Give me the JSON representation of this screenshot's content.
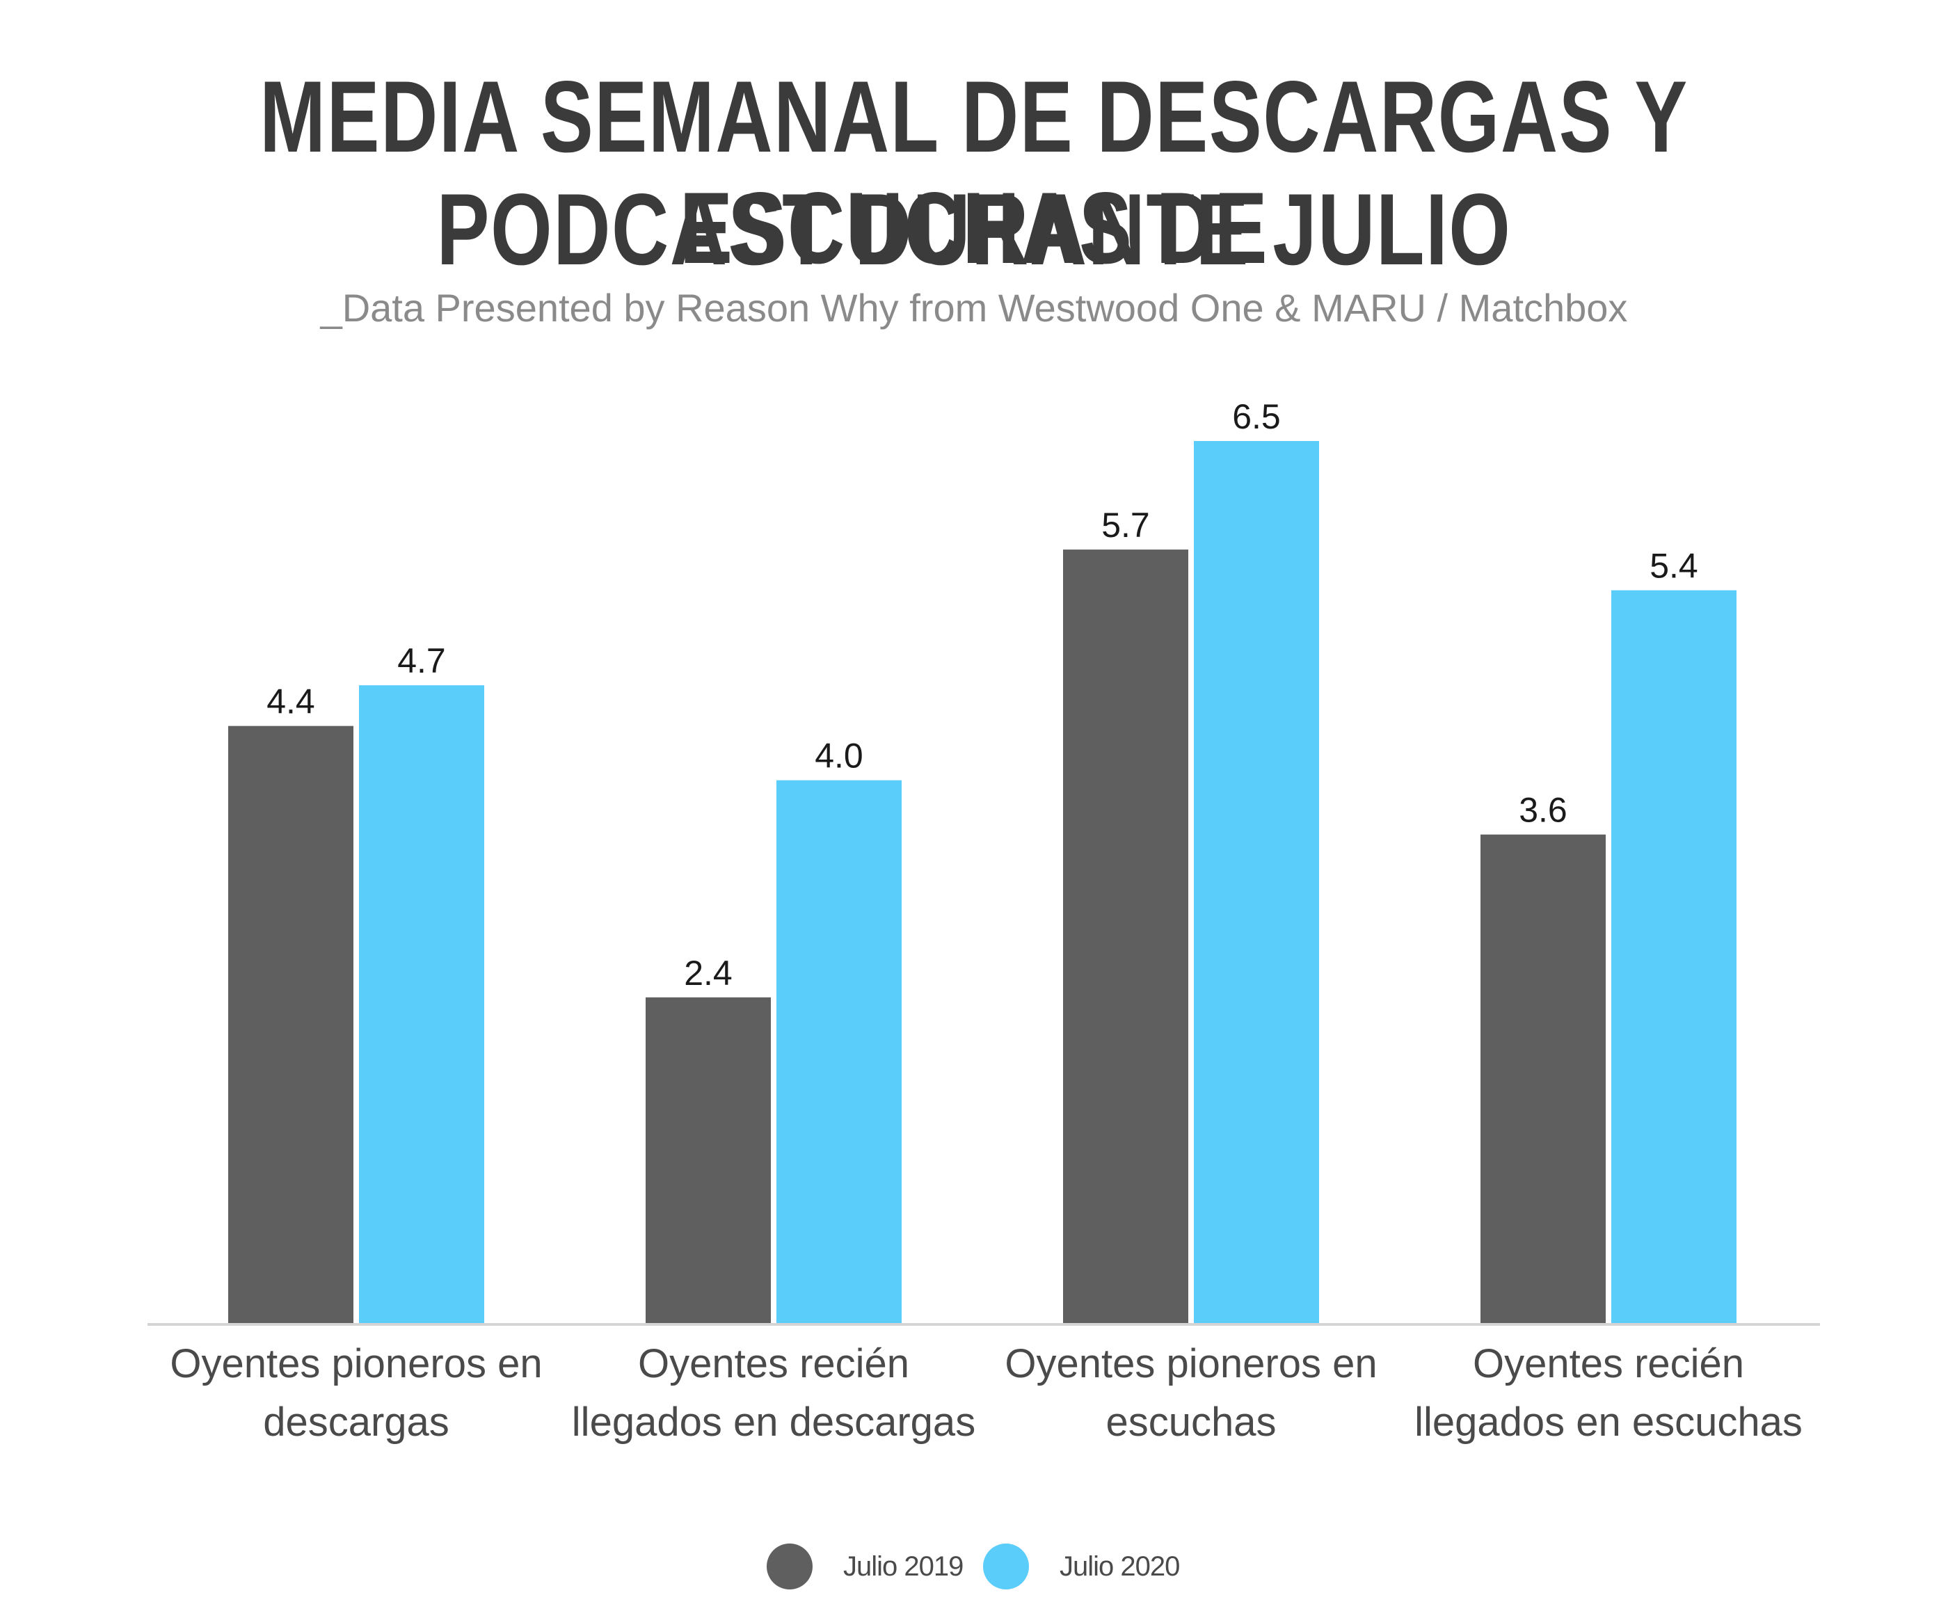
{
  "chart_data": {
    "type": "bar",
    "title_lines": [
      "MEDIA SEMANAL DE DESCARGAS Y ESCUCHAS  DE",
      "PODCAST DURANTE JULIO"
    ],
    "subtitle": "_Data Presented by Reason Why from Westwood One & MARU / Matchbox",
    "categories": [
      [
        "Oyentes pioneros en",
        "descargas"
      ],
      [
        "Oyentes recién",
        "llegados en descargas"
      ],
      [
        "Oyentes pioneros en",
        "escuchas"
      ],
      [
        "Oyentes recién",
        "llegados en escuchas"
      ]
    ],
    "series": [
      {
        "name": "Julio 2019",
        "color": "#5f5f5f",
        "values": [
          4.4,
          2.4,
          5.7,
          3.6
        ],
        "labels": [
          "4.4",
          "2.4",
          "5.7",
          "3.6"
        ]
      },
      {
        "name": "Julio 2020",
        "color": "#5bcdfb",
        "values": [
          4.7,
          4.0,
          6.5,
          5.4
        ],
        "labels": [
          "4.7",
          "4.0",
          "6.5",
          "5.4"
        ]
      }
    ],
    "ylim": [
      0,
      7
    ],
    "grid": false,
    "legend_position": "bottom-center"
  }
}
